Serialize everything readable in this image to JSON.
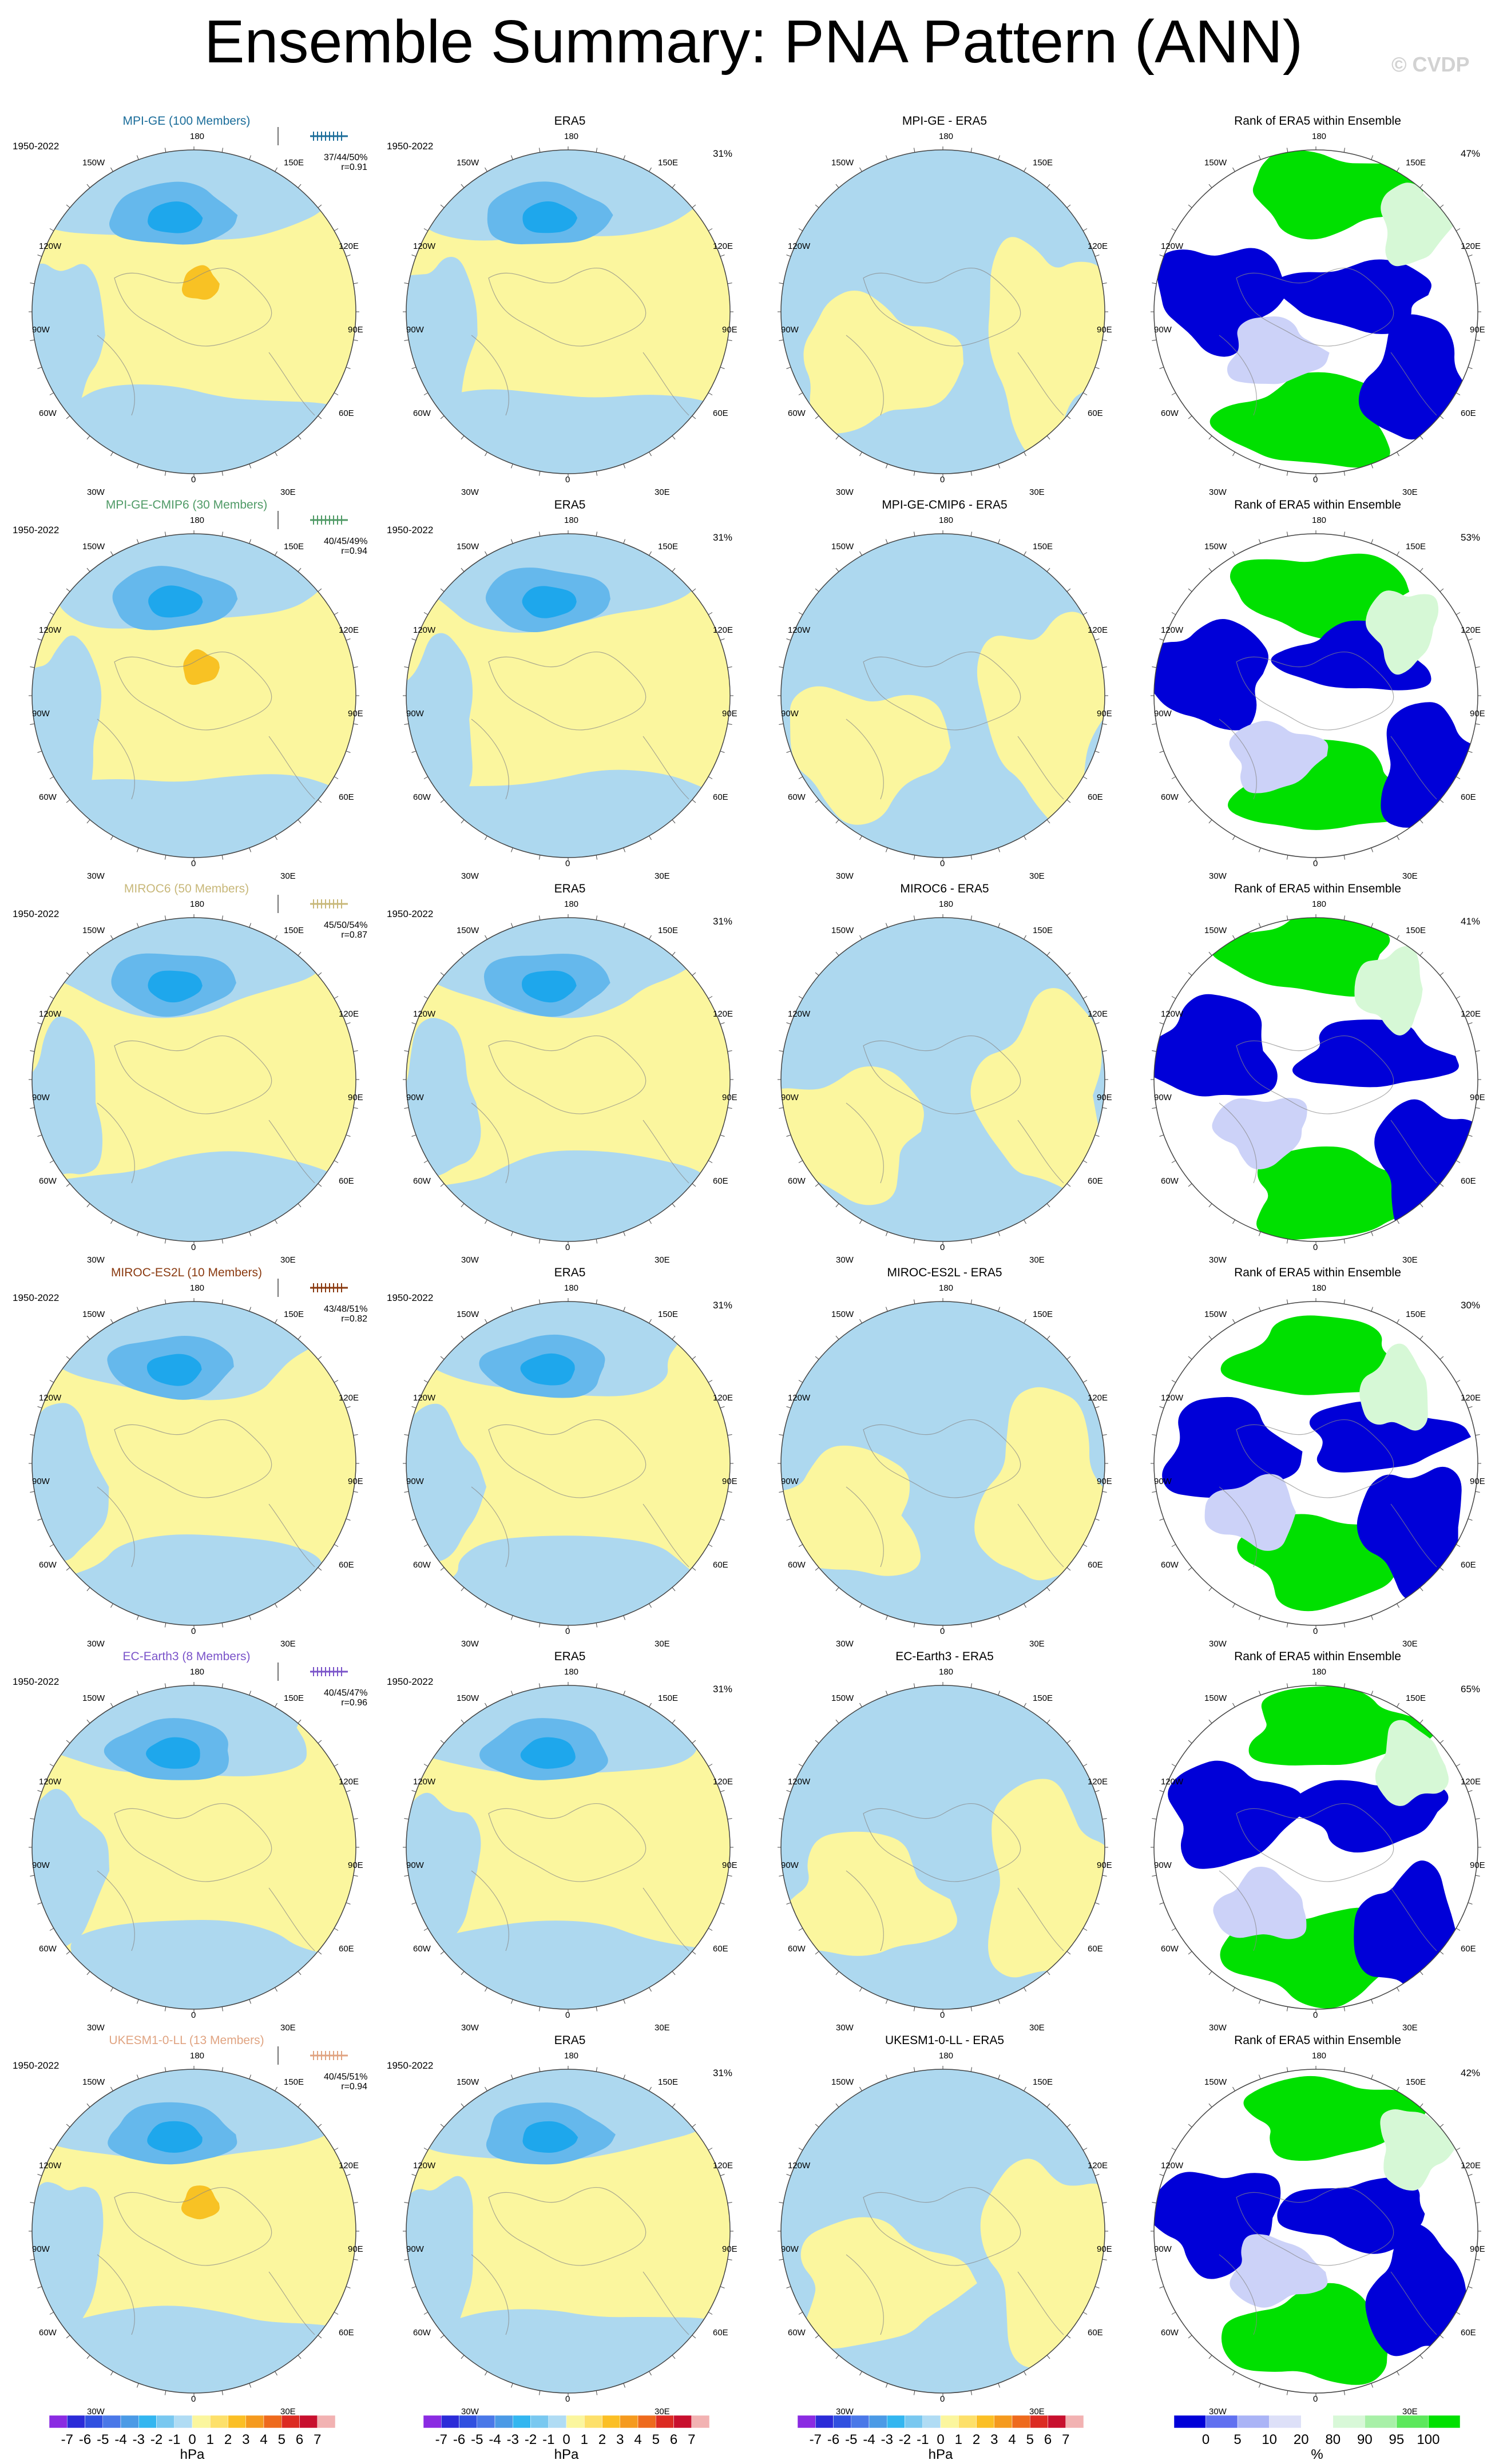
{
  "title": "Ensemble Summary: PNA Pattern (ANN)",
  "watermark": "© CVDP",
  "rows": [
    {
      "model": "MPI-GE (100 Members)",
      "color": "#1b6d9a",
      "years": "1950-2022",
      "stats": "37/44/50%",
      "r": "r=0.91",
      "era5_pct": "31%",
      "diff_title": "MPI-GE - ERA5",
      "rank_pct": "47%"
    },
    {
      "model": "MPI-GE-CMIP6 (30 Members)",
      "color": "#4f9a66",
      "years": "1950-2022",
      "stats": "40/45/49%",
      "r": "r=0.94",
      "era5_pct": "31%",
      "diff_title": "MPI-GE-CMIP6 - ERA5",
      "rank_pct": "53%"
    },
    {
      "model": "MIROC6 (50 Members)",
      "color": "#c8b87a",
      "years": "1950-2022",
      "stats": "45/50/54%",
      "r": "r=0.87",
      "era5_pct": "31%",
      "diff_title": "MIROC6 - ERA5",
      "rank_pct": "41%"
    },
    {
      "model": "MIROC-ES2L (10 Members)",
      "color": "#8a3a10",
      "years": "1950-2022",
      "stats": "43/48/51%",
      "r": "r=0.82",
      "era5_pct": "31%",
      "diff_title": "MIROC-ES2L - ERA5",
      "rank_pct": "30%"
    },
    {
      "model": "EC-Earth3 (8 Members)",
      "color": "#7a53c9",
      "years": "1950-2022",
      "stats": "40/45/47%",
      "r": "r=0.96",
      "era5_pct": "31%",
      "diff_title": "EC-Earth3 - ERA5",
      "rank_pct": "65%"
    },
    {
      "model": "UKESM1-0-LL (13 Members)",
      "color": "#e0a482",
      "years": "1950-2022",
      "stats": "40/45/51%",
      "r": "r=0.94",
      "era5_pct": "31%",
      "diff_title": "UKESM1-0-LL - ERA5",
      "rank_pct": "42%"
    }
  ],
  "era5_title": "ERA5",
  "era5_years": "1950-2022",
  "rank_title": "Rank of ERA5 within Ensemble",
  "map_labels": {
    "top": "180",
    "bottom": "0",
    "ul": "150W",
    "ur": "150E",
    "l1": "120W",
    "r1": "120E",
    "l2": "90W",
    "r2": "90E",
    "l3": "60W",
    "r3": "60E",
    "ll": "30W",
    "lr": "30E"
  },
  "colorbar_hpa": {
    "ticks": [
      "-7",
      "-6",
      "-5",
      "-4",
      "-3",
      "-2",
      "-1",
      "0",
      "1",
      "2",
      "3",
      "4",
      "5",
      "6",
      "7"
    ],
    "unit": "hPa",
    "colors": [
      "#8a2be2",
      "#2b2bd8",
      "#3050e0",
      "#4a78e8",
      "#4b9ae6",
      "#33b6f0",
      "#79c8f0",
      "#b0dcf4",
      "#fbf69e",
      "#fde06a",
      "#fbbf25",
      "#f59a1e",
      "#ee6a1d",
      "#dc2b22",
      "#c8102e",
      "#f2b2b2"
    ]
  },
  "colorbar_rank": {
    "ticks": [
      "0",
      "5",
      "10",
      "20",
      "80",
      "90",
      "95",
      "100"
    ],
    "unit": "%",
    "colors": [
      "#0000d8",
      "#6070f0",
      "#aab4f6",
      "#dde0f8",
      "#ffffff",
      "#d8f8d8",
      "#a8f0a8",
      "#5ce85c",
      "#00e000"
    ]
  },
  "legend_colors": {
    "neg_light": "#add8ef",
    "neg_mid": "#65b8ec",
    "neg_strong": "#1ea7ec",
    "pos_light": "#fbf69e",
    "pos_mid": "#fbd96a",
    "pos_strong": "#f8c224",
    "rank_low": "#0000d8",
    "rank_high": "#00e000",
    "rank_mid_low": "#ccd2f8",
    "rank_mid_high": "#d6f8d6"
  }
}
